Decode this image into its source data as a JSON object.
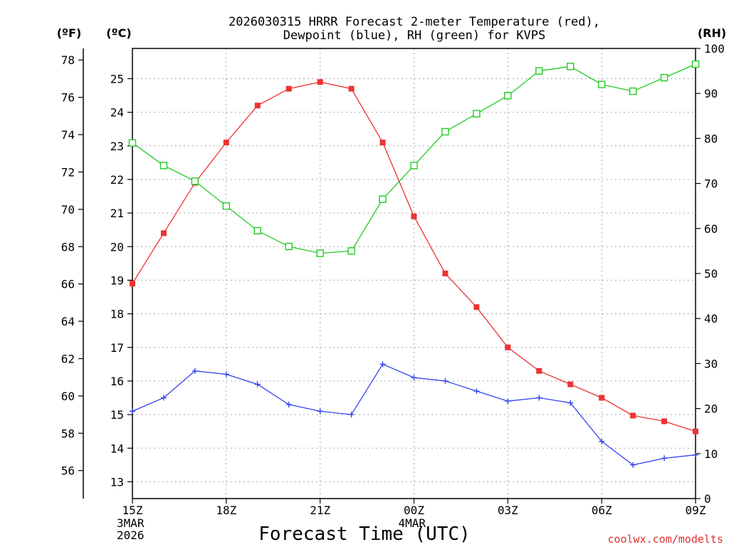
{
  "chart_data": {
    "type": "line",
    "title_line1": "2026030315 HRRR Forecast 2-meter Temperature (red),",
    "title_line2": "Dewpoint (blue), RH (green) for KVPS",
    "xlabel": "Forecast Time (UTC)",
    "credit": "coolwx.com/modelts",
    "units": {
      "fahrenheit": "(ºF)",
      "celsius": "(ºC)",
      "rh": "(RH)"
    },
    "x_ticks": [
      {
        "hour": 0,
        "label": "15Z",
        "date_lines": [
          "3MAR",
          "2026"
        ]
      },
      {
        "hour": 3,
        "label": "18Z",
        "date_lines": []
      },
      {
        "hour": 6,
        "label": "21Z",
        "date_lines": []
      },
      {
        "hour": 9,
        "label": "00Z",
        "date_lines": [
          "4MAR"
        ]
      },
      {
        "hour": 12,
        "label": "03Z",
        "date_lines": []
      },
      {
        "hour": 15,
        "label": "06Z",
        "date_lines": []
      },
      {
        "hour": 18,
        "label": "09Z",
        "date_lines": []
      }
    ],
    "xlim": [
      0,
      18
    ],
    "celsius_axis": {
      "min": 12.5,
      "max": 25.9,
      "ticks": [
        13,
        14,
        15,
        16,
        17,
        18,
        19,
        20,
        21,
        22,
        23,
        24,
        25
      ]
    },
    "fahrenheit_axis": {
      "ticks": [
        56,
        58,
        60,
        62,
        64,
        66,
        68,
        70,
        72,
        74,
        76,
        78
      ]
    },
    "rh_axis": {
      "min": 0,
      "max": 100,
      "ticks": [
        0,
        10,
        20,
        30,
        40,
        50,
        60,
        70,
        80,
        90,
        100
      ]
    },
    "x": [
      0,
      1,
      2,
      3,
      4,
      5,
      6,
      7,
      8,
      9,
      10,
      11,
      12,
      13,
      14,
      15,
      16,
      17,
      18
    ],
    "series": [
      {
        "name": "2-meter Temperature",
        "axis": "celsius",
        "color": "#ee3333",
        "marker": "filled-square",
        "values": [
          18.9,
          20.4,
          21.9,
          23.1,
          24.2,
          24.7,
          24.9,
          24.7,
          23.1,
          20.9,
          19.2,
          18.2,
          17.0,
          16.3,
          15.9,
          15.5,
          14.97,
          14.8,
          14.5
        ]
      },
      {
        "name": "Dewpoint",
        "axis": "celsius",
        "color": "#3344ee",
        "marker": "plus",
        "values": [
          15.1,
          15.5,
          16.3,
          16.2,
          15.9,
          15.3,
          15.1,
          15.0,
          16.5,
          16.1,
          16.0,
          15.7,
          15.4,
          15.5,
          15.35,
          14.2,
          13.5,
          13.7,
          13.8
        ]
      },
      {
        "name": "RH",
        "axis": "rh",
        "color": "#22cc22",
        "marker": "open-square",
        "values": [
          79,
          74,
          70.5,
          65,
          59.5,
          56,
          54.5,
          55,
          66.5,
          74,
          81.5,
          85.5,
          89.5,
          95,
          96,
          92,
          90.5,
          93.5,
          96.5
        ]
      }
    ]
  }
}
